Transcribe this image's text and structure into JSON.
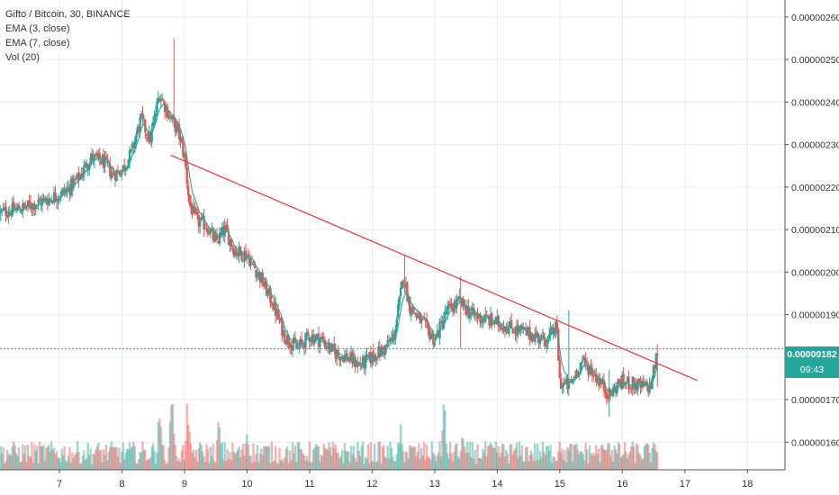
{
  "legend": {
    "title": "Gifto / Bitcoin, 30, BINANCE",
    "ema3": "EMA (3, close)",
    "ema7": "EMA (7, close)",
    "vol": "Vol (20)"
  },
  "current": {
    "price_label": "0.00000182",
    "countdown": "09:43"
  },
  "colors": {
    "up": "#26a69a",
    "down": "#ef5350",
    "trendline": "#f23c3c",
    "ema": "#26a69a",
    "grid": "#e9ecef",
    "price_line": "#26a69a"
  },
  "chart_data": {
    "type": "candlestick",
    "x_ticks": [
      "7",
      "8",
      "9",
      "10",
      "11",
      "12",
      "13",
      "14",
      "15",
      "16",
      "17",
      "18"
    ],
    "y_ticks": [
      "0.00000260",
      "0.00000250",
      "0.00000240",
      "0.00000230",
      "0.00000220",
      "0.00000210",
      "0.00000200",
      "0.00000190",
      "0.00000180",
      "0.00000170",
      "0.00000160"
    ],
    "x_range": [
      6.05,
      18.6
    ],
    "y_range": [
      1.535,
      2.64
    ],
    "y_unit": "1e-6 BTC",
    "price_path": [
      [
        6.05,
        2.14
      ],
      [
        6.4,
        2.15
      ],
      [
        6.8,
        2.17
      ],
      [
        7.1,
        2.19
      ],
      [
        7.3,
        2.22
      ],
      [
        7.5,
        2.27
      ],
      [
        7.7,
        2.26
      ],
      [
        7.85,
        2.23
      ],
      [
        8.0,
        2.24
      ],
      [
        8.15,
        2.28
      ],
      [
        8.3,
        2.36
      ],
      [
        8.45,
        2.31
      ],
      [
        8.6,
        2.42
      ],
      [
        8.75,
        2.37
      ],
      [
        8.9,
        2.33
      ],
      [
        9.0,
        2.27
      ],
      [
        9.08,
        2.16
      ],
      [
        9.2,
        2.12
      ],
      [
        9.35,
        2.11
      ],
      [
        9.5,
        2.07
      ],
      [
        9.65,
        2.1
      ],
      [
        9.8,
        2.05
      ],
      [
        10.0,
        2.04
      ],
      [
        10.2,
        1.99
      ],
      [
        10.4,
        1.93
      ],
      [
        10.6,
        1.85
      ],
      [
        10.8,
        1.82
      ],
      [
        11.0,
        1.85
      ],
      [
        11.2,
        1.84
      ],
      [
        11.4,
        1.81
      ],
      [
        11.6,
        1.8
      ],
      [
        11.8,
        1.78
      ],
      [
        12.0,
        1.8
      ],
      [
        12.2,
        1.82
      ],
      [
        12.35,
        1.85
      ],
      [
        12.5,
        1.99
      ],
      [
        12.6,
        1.92
      ],
      [
        12.8,
        1.88
      ],
      [
        13.0,
        1.84
      ],
      [
        13.2,
        1.91
      ],
      [
        13.4,
        1.93
      ],
      [
        13.6,
        1.9
      ],
      [
        13.8,
        1.89
      ],
      [
        14.0,
        1.88
      ],
      [
        14.2,
        1.87
      ],
      [
        14.4,
        1.86
      ],
      [
        14.6,
        1.85
      ],
      [
        14.8,
        1.84
      ],
      [
        14.95,
        1.87
      ],
      [
        15.0,
        1.74
      ],
      [
        15.15,
        1.73
      ],
      [
        15.35,
        1.79
      ],
      [
        15.5,
        1.77
      ],
      [
        15.65,
        1.74
      ],
      [
        15.8,
        1.71
      ],
      [
        15.95,
        1.74
      ],
      [
        16.1,
        1.74
      ],
      [
        16.3,
        1.73
      ],
      [
        16.45,
        1.73
      ],
      [
        16.57,
        1.82
      ]
    ],
    "spikes": [
      {
        "x": 8.84,
        "high": 2.55,
        "low": 2.34
      },
      {
        "x": 12.52,
        "high": 2.04,
        "low": 1.95
      },
      {
        "x": 13.42,
        "high": 1.99,
        "low": 1.82
      },
      {
        "x": 15.15,
        "high": 1.91,
        "low": 1.71
      },
      {
        "x": 15.78,
        "high": 1.77,
        "low": 1.66
      },
      {
        "x": 16.58,
        "high": 1.83,
        "low": 1.73
      }
    ],
    "trendline": {
      "x1": 8.78,
      "y1": 2.275,
      "x2": 17.2,
      "y2": 1.745
    },
    "volume": {
      "base_range": [
        0.05,
        0.25
      ],
      "peaks": [
        {
          "x": 8.8,
          "value": 1.0
        },
        {
          "x": 8.6,
          "value": 0.62
        },
        {
          "x": 9.05,
          "value": 0.7
        },
        {
          "x": 9.55,
          "value": 0.55
        },
        {
          "x": 10.0,
          "value": 0.4
        },
        {
          "x": 12.45,
          "value": 0.45
        },
        {
          "x": 13.15,
          "value": 0.72
        },
        {
          "x": 13.45,
          "value": 0.4
        },
        {
          "x": 15.0,
          "value": 0.35
        },
        {
          "x": 15.78,
          "value": 0.38
        },
        {
          "x": 16.55,
          "value": 0.25
        }
      ]
    },
    "current_price": 1.82,
    "grid": true
  }
}
